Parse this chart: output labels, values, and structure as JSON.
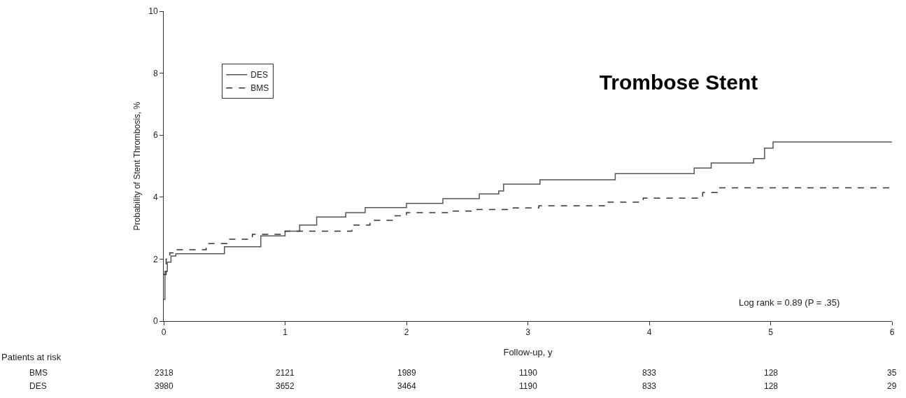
{
  "chart_data": {
    "type": "step",
    "title": "Trombose Stent",
    "xlabel": "Follow-up, y",
    "ylabel": "Probability of Stent Thrombosis, %",
    "xlim": [
      0,
      6
    ],
    "xticks": [
      0,
      1,
      2,
      3,
      4,
      5,
      6
    ],
    "ylim": [
      0,
      10
    ],
    "yticks": [
      0,
      2,
      4,
      6,
      8,
      10
    ],
    "grid": false,
    "legend": "top left",
    "marker": "none",
    "series": [
      {
        "name": "DES",
        "color": "#555555",
        "line_style": "solid",
        "x": [
          0,
          0.01,
          0.03,
          0.06,
          0.1,
          0.5,
          0.8,
          1.0,
          1.12,
          1.26,
          1.5,
          1.66,
          2.0,
          2.3,
          2.6,
          2.76,
          2.8,
          3.1,
          3.72,
          4.37,
          4.51,
          4.86,
          4.95,
          5.02,
          6
        ],
        "values": [
          0.7,
          1.6,
          1.9,
          2.1,
          2.17,
          2.4,
          2.75,
          2.9,
          3.1,
          3.36,
          3.5,
          3.66,
          3.8,
          3.95,
          4.1,
          4.2,
          4.42,
          4.56,
          4.76,
          4.94,
          5.1,
          5.24,
          5.58,
          5.78,
          5.78
        ]
      },
      {
        "name": "BMS",
        "color": "#333333",
        "line_style": "dashed",
        "x": [
          0,
          0.02,
          0.05,
          0.08,
          0.35,
          0.52,
          0.73,
          1.0,
          1.55,
          1.7,
          1.9,
          2.0,
          2.36,
          2.57,
          2.88,
          3.09,
          3.63,
          3.95,
          4.44,
          4.56,
          6
        ],
        "values": [
          1.5,
          2.0,
          2.2,
          2.3,
          2.5,
          2.64,
          2.8,
          2.9,
          3.1,
          3.25,
          3.4,
          3.5,
          3.55,
          3.6,
          3.65,
          3.72,
          3.84,
          3.97,
          4.15,
          4.3,
          4.3
        ]
      }
    ],
    "annotations": [
      "Log rank = 0.89 (P = .35)",
      "Patients at risk",
      "BMS",
      "DES",
      "2318",
      "2121",
      "1989",
      "1190",
      "833",
      "128",
      "35",
      "3980",
      "3652",
      "3464",
      "1190",
      "833",
      "128",
      "29"
    ]
  }
}
